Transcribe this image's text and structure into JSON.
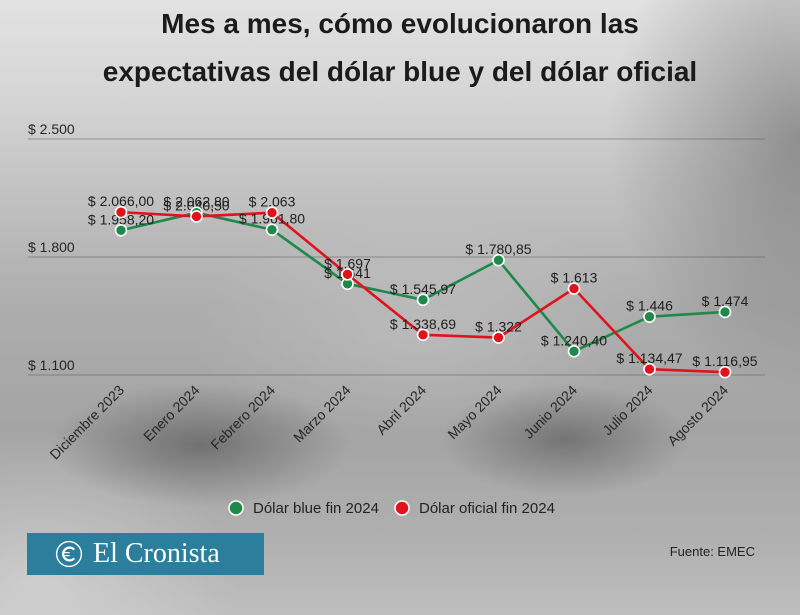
{
  "title_lines": [
    "Mes a mes, cómo evolucionaron las",
    "expectativas del dólar blue y del dólar oficial"
  ],
  "chart_data": {
    "type": "line",
    "categories": [
      "Diciembre 2023",
      "Enero 2024",
      "Febrero 2024",
      "Marzo 2024",
      "Abril 2024",
      "Mayo 2024",
      "Junio 2024",
      "Julio 2024",
      "Agosto 2024"
    ],
    "ylim": [
      1100,
      2500
    ],
    "y_ticks": [
      {
        "value": 2500,
        "label": "$ 2.500"
      },
      {
        "value": 1800,
        "label": "$ 1.800"
      },
      {
        "value": 1100,
        "label": "$ 1.100"
      }
    ],
    "series": [
      {
        "name": "Dólar blue fin 2024",
        "color": "#1d8a4b",
        "values": [
          1958.2,
          2062.8,
          1961.8,
          1641,
          1545.97,
          1780.85,
          1240.4,
          1446,
          1474
        ],
        "labels": [
          "$ 1.958,20",
          "$ 2.062,80",
          "$ 1.961,80",
          "$ 1.641",
          "$ 1.545,97",
          "$ 1.780,85",
          "$ 1.240,40",
          "$ 1.446",
          "$ 1.474"
        ]
      },
      {
        "name": "Dólar oficial fin 2024",
        "color": "#e0121c",
        "values": [
          2066.0,
          2040.5,
          2063,
          1697,
          1338.69,
          1322,
          1613,
          1134.47,
          1116.95
        ],
        "labels": [
          "$ 2.066,00",
          "$ 2.040,50",
          "$ 2.063",
          "$ 1.697",
          "$ 1.338,69",
          "$ 1.322",
          "$ 1.613",
          "$ 1.134,47",
          "$ 1.116,95"
        ]
      }
    ],
    "grid": true,
    "legend_position": "bottom-center",
    "xlabel": "",
    "ylabel": ""
  },
  "logo": {
    "wordmark": "El Cronista",
    "icon": "cronista-c-icon"
  },
  "source": "Fuente: EMEC",
  "colors": {
    "logo_background": "#2b7e9c",
    "logo_foreground": "#ffffff"
  }
}
